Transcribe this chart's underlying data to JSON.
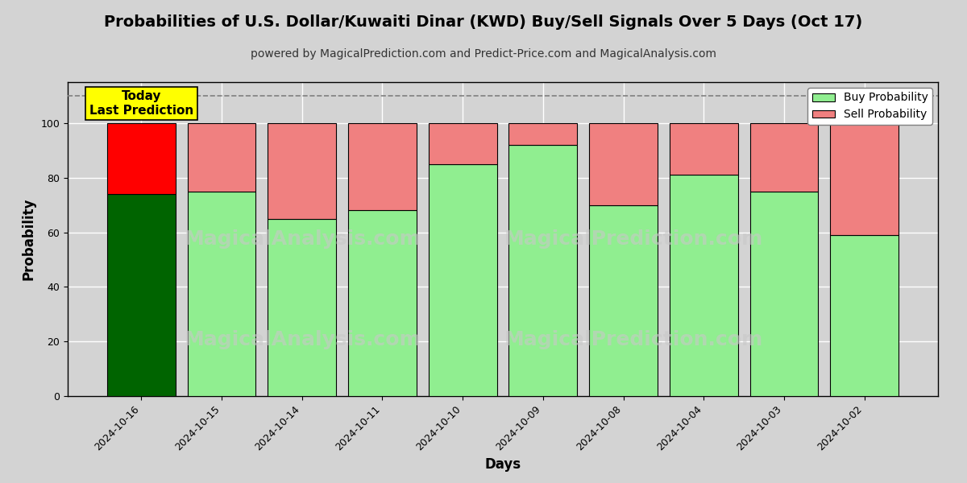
{
  "title": "Probabilities of U.S. Dollar/Kuwaiti Dinar (KWD) Buy/Sell Signals Over 5 Days (Oct 17)",
  "subtitle": "powered by MagicalPrediction.com and Predict-Price.com and MagicalAnalysis.com",
  "xlabel": "Days",
  "ylabel": "Probability",
  "categories": [
    "2024-10-16",
    "2024-10-15",
    "2024-10-14",
    "2024-10-11",
    "2024-10-10",
    "2024-10-09",
    "2024-10-08",
    "2024-10-04",
    "2024-10-03",
    "2024-10-02"
  ],
  "buy_values": [
    74,
    75,
    65,
    68,
    85,
    92,
    70,
    81,
    75,
    59
  ],
  "sell_values": [
    26,
    25,
    35,
    32,
    15,
    8,
    30,
    19,
    25,
    41
  ],
  "buy_color_today": "#006400",
  "sell_color_today": "#FF0000",
  "buy_color_rest": "#90EE90",
  "sell_color_rest": "#F08080",
  "today_annotation": "Today\nLast Prediction",
  "today_annotation_bg": "#FFFF00",
  "dashed_line_y": 110,
  "ylim": [
    0,
    115
  ],
  "yticks": [
    0,
    20,
    40,
    60,
    80,
    100
  ],
  "legend_buy_label": "Buy Probability",
  "legend_sell_label": "Sell Probability",
  "grid_color": "#FFFFFF",
  "plot_bg_color": "#D3D3D3",
  "fig_bg_color": "#D3D3D3",
  "title_fontsize": 14,
  "subtitle_fontsize": 10,
  "axis_label_fontsize": 12,
  "tick_fontsize": 9,
  "bar_width": 0.85
}
